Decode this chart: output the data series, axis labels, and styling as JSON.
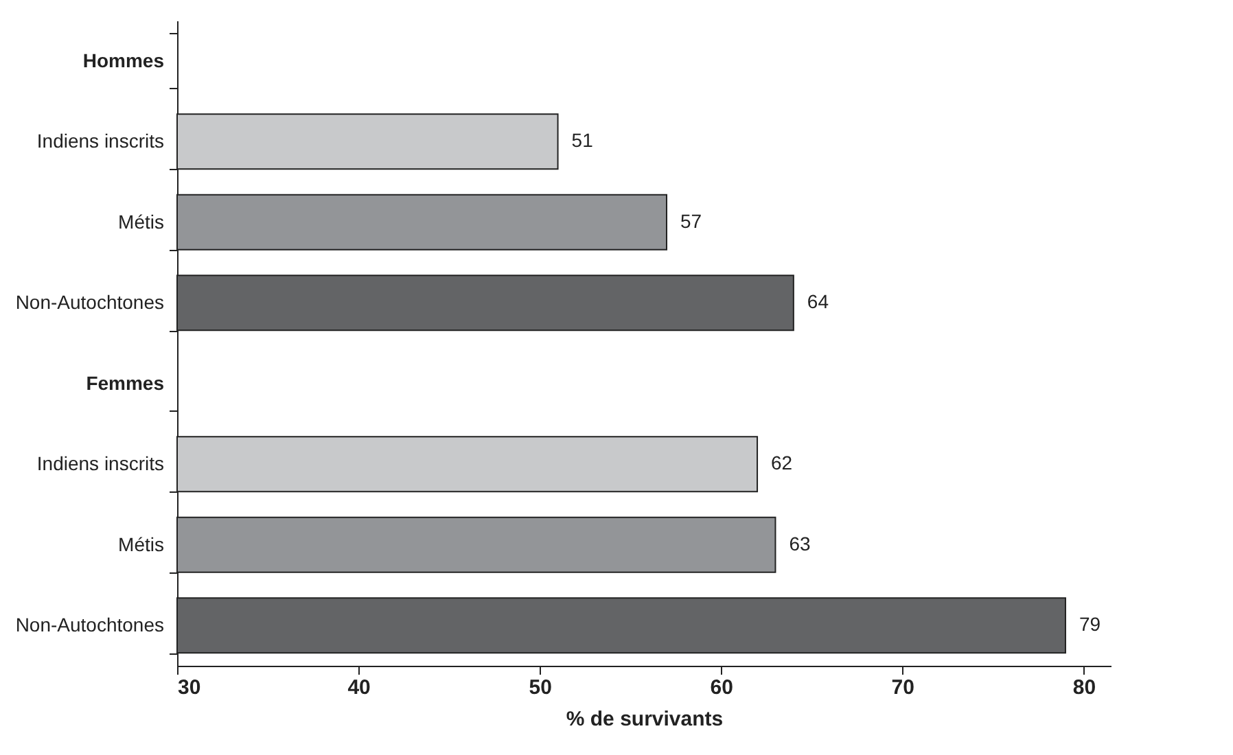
{
  "chart_data": {
    "type": "bar",
    "orientation": "horizontal",
    "xlabel": "% de survivants",
    "categories": [
      "Hommes",
      "Indiens inscrits",
      "Métis",
      "Non-Autochtones",
      "Femmes",
      "Indiens inscrits",
      "Métis",
      "Non-Autochtones"
    ],
    "values": [
      null,
      51,
      57,
      64,
      null,
      62,
      63,
      79
    ],
    "colors": [
      null,
      "#c8c9cb",
      "#939598",
      "#636466",
      null,
      "#c8c9cb",
      "#939598",
      "#636466"
    ],
    "xlim": [
      30,
      81.5
    ],
    "xticks": [
      30,
      40,
      50,
      60,
      70,
      80
    ],
    "data_labels": true,
    "grid": false
  }
}
